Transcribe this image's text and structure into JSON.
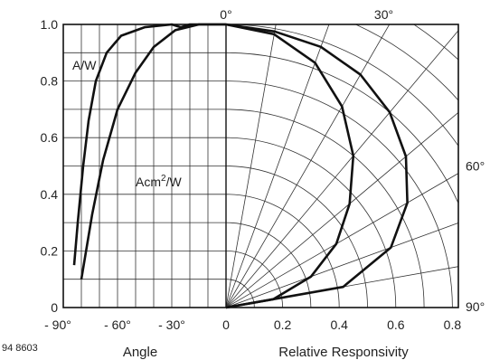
{
  "chart_data": [
    {
      "type": "line",
      "panel": "left",
      "xlabel": "Angle",
      "ylabel": "",
      "x_unit": "°",
      "xlim": [
        -90,
        0
      ],
      "ylim": [
        0,
        1.0
      ],
      "x_ticks": [
        "- 90°",
        "- 60°",
        "- 30°",
        "0"
      ],
      "y_ticks": [
        "0",
        "0.2",
        "0.4",
        "0.6",
        "0.8",
        "1.0"
      ],
      "grid": true,
      "series": [
        {
          "name": "A/W",
          "points": [
            [
              -84,
              0.15
            ],
            [
              -82,
              0.3
            ],
            [
              -79,
              0.5
            ],
            [
              -76,
              0.66
            ],
            [
              -72,
              0.8
            ],
            [
              -66,
              0.9
            ],
            [
              -58,
              0.96
            ],
            [
              -45,
              0.99
            ],
            [
              -30,
              1.0
            ],
            [
              -25,
              0.99
            ],
            [
              -20,
              1.0
            ],
            [
              -10,
              1.0
            ],
            [
              0,
              1.0
            ]
          ]
        },
        {
          "name": "Acm2/W",
          "points": [
            [
              -80,
              0.1
            ],
            [
              -74,
              0.33
            ],
            [
              -68,
              0.52
            ],
            [
              -60,
              0.7
            ],
            [
              -50,
              0.83
            ],
            [
              -40,
              0.92
            ],
            [
              -28,
              0.98
            ],
            [
              -15,
              1.0
            ],
            [
              0,
              1.0
            ]
          ]
        }
      ]
    },
    {
      "type": "polar",
      "panel": "right",
      "xlabel": "Relative Responsivity",
      "rlim": [
        0,
        1.0
      ],
      "r_ticks": [
        "0",
        "0.2",
        "0.4",
        "0.6",
        "0.8"
      ],
      "angle_ticks": [
        "0°",
        "30°",
        "60°",
        "90°"
      ],
      "angle_step_deg": 10,
      "r_step": 0.1,
      "series": [
        {
          "name": "A/W",
          "theta_deg": [
            0,
            10,
            20,
            30,
            40,
            50,
            60,
            70,
            80,
            90
          ],
          "r": [
            1.0,
            0.99,
            0.98,
            0.95,
            0.9,
            0.83,
            0.74,
            0.62,
            0.42,
            0.0
          ]
        },
        {
          "name": "Acm2/W",
          "theta_deg": [
            0,
            10,
            20,
            30,
            40,
            50,
            60,
            70,
            80,
            90
          ],
          "r": [
            1.0,
            0.98,
            0.92,
            0.82,
            0.7,
            0.57,
            0.45,
            0.32,
            0.17,
            0.0
          ]
        }
      ]
    }
  ],
  "labels": {
    "code": "94 8603",
    "series_a": "A/W",
    "series_b_base": "Acm",
    "series_b_sup": "2",
    "series_b_tail": "/W"
  }
}
